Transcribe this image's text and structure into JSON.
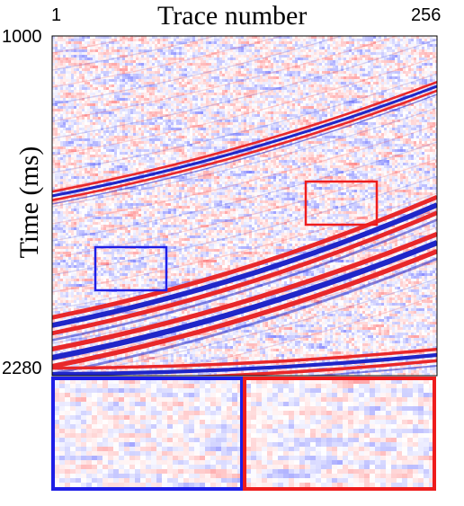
{
  "x_axis": {
    "title": "Trace number",
    "tick_min": "1",
    "tick_max": "256"
  },
  "y_axis": {
    "title": "Time (ms)",
    "tick_min": "1000",
    "tick_max": "2280"
  },
  "colors": {
    "positive": "#e8282a",
    "negative": "#1f26c8",
    "background": "#ffffff",
    "inset_blue_frame": "#1e1ee6",
    "inset_red_frame": "#ee1c1c"
  },
  "image_type": "seismic section with red/white/blue colormap and two zoomed insets"
}
